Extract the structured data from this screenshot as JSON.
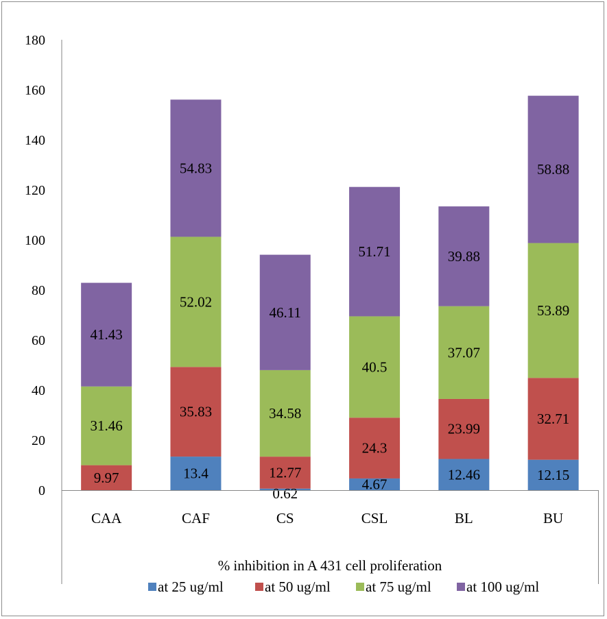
{
  "chart_data": {
    "type": "bar",
    "stacked": true,
    "xlabel": "% inhibition in A 431 cell proliferation",
    "ylabel": "",
    "ylim": [
      0,
      180
    ],
    "yticks": [
      0,
      20,
      40,
      60,
      80,
      100,
      120,
      140,
      160,
      180
    ],
    "grid": false,
    "legend_position": "bottom",
    "categories": [
      "CAA",
      "CAF",
      "CS",
      "CSL",
      "BL",
      "BU"
    ],
    "series": [
      {
        "name": "at 25 ug/ml",
        "color": "#4f81bd",
        "values": [
          0,
          13.4,
          0.62,
          4.67,
          12.46,
          12.15
        ],
        "labels": [
          "",
          "13.4",
          "0.62",
          "4.67",
          "12.46",
          "12.15"
        ]
      },
      {
        "name": "at 50 ug/ml",
        "color": "#c0504d",
        "values": [
          9.97,
          35.83,
          12.77,
          24.3,
          23.99,
          32.71
        ],
        "labels": [
          "9.97",
          "35.83",
          "12.77",
          "24.3",
          "23.99",
          "32.71"
        ]
      },
      {
        "name": "at 75 ug/ml",
        "color": "#9bbb59",
        "values": [
          31.46,
          52.02,
          34.58,
          40.5,
          37.07,
          53.89
        ],
        "labels": [
          "31.46",
          "52.02",
          "34.58",
          "40.5",
          "37.07",
          "53.89"
        ]
      },
      {
        "name": "at 100 ug/ml",
        "color": "#8064a2",
        "values": [
          41.43,
          54.83,
          46.11,
          51.71,
          39.88,
          58.88
        ],
        "labels": [
          "41.43",
          "54.83",
          "46.11",
          "51.71",
          "39.88",
          "58.88"
        ]
      }
    ]
  }
}
